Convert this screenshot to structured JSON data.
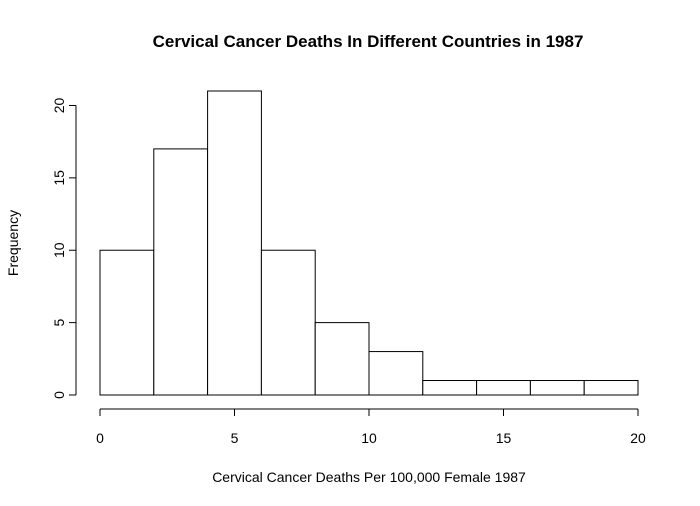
{
  "chart_data": {
    "type": "bar",
    "title": "Cervical Cancer Deaths In Different Countries in 1987",
    "xlabel": "Cervical Cancer Deaths Per 100,000 Female 1987",
    "ylabel": "Frequency",
    "bins": [
      {
        "start": 0,
        "end": 2,
        "value": 10
      },
      {
        "start": 2,
        "end": 4,
        "value": 17
      },
      {
        "start": 4,
        "end": 6,
        "value": 21
      },
      {
        "start": 6,
        "end": 8,
        "value": 10
      },
      {
        "start": 8,
        "end": 10,
        "value": 5
      },
      {
        "start": 10,
        "end": 12,
        "value": 3
      },
      {
        "start": 12,
        "end": 14,
        "value": 1
      },
      {
        "start": 14,
        "end": 16,
        "value": 1
      },
      {
        "start": 16,
        "end": 18,
        "value": 1
      },
      {
        "start": 18,
        "end": 20,
        "value": 1
      }
    ],
    "xlim": [
      0,
      20
    ],
    "ylim": [
      0,
      21
    ],
    "xticks": [
      "0",
      "5",
      "10",
      "15",
      "20"
    ],
    "yticks": [
      "0",
      "5",
      "10",
      "15",
      "20"
    ],
    "grid": false,
    "legend": "none"
  }
}
